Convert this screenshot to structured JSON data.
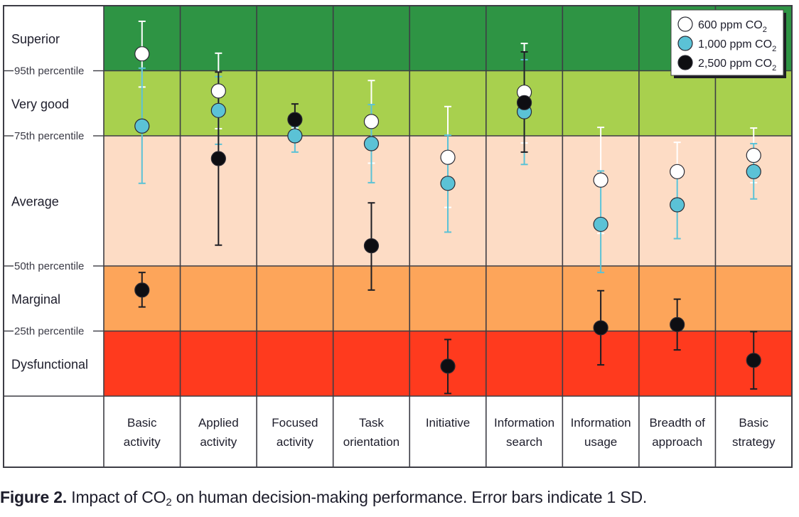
{
  "chart_data": {
    "type": "scatter",
    "title": "",
    "xlabel": "",
    "ylabel": "",
    "y_scale_note": "Score units where 0 = bottom, 1 = 25th percentile, 2 = 50th percentile, 4 = 75th percentile, 5 = 95th percentile, 6 = top",
    "ylim": [
      0,
      6
    ],
    "grid": true,
    "legend_position": "top-right",
    "bands": [
      {
        "label": "Superior",
        "from": 5,
        "to": 6,
        "color": "#2e9444"
      },
      {
        "label": "Very good",
        "from": 4,
        "to": 5,
        "color": "#a8d04e"
      },
      {
        "label": "Average",
        "from": 2,
        "to": 4,
        "color": "#fddcc5"
      },
      {
        "label": "Marginal",
        "from": 1,
        "to": 2,
        "color": "#fda55a"
      },
      {
        "label": "Dysfunctional",
        "from": 0,
        "to": 1,
        "color": "#ff3a1e"
      }
    ],
    "thresholds": [
      {
        "label": "95th percentile",
        "value": 5
      },
      {
        "label": "75th percentile",
        "value": 4
      },
      {
        "label": "50th percentile",
        "value": 2
      },
      {
        "label": "25th percentile",
        "value": 1
      }
    ],
    "categories": [
      [
        "Basic",
        "activity"
      ],
      [
        "Applied",
        "activity"
      ],
      [
        "Focused",
        "activity"
      ],
      [
        "Task",
        "orientation"
      ],
      [
        "Initiative"
      ],
      [
        "Information",
        "search"
      ],
      [
        "Information",
        "usage"
      ],
      [
        "Breadth of",
        "approach"
      ],
      [
        "Basic",
        "strategy"
      ]
    ],
    "series": [
      {
        "name": "600 ppm CO2",
        "name_main": "600 ppm CO",
        "name_sub": "2",
        "fill": "#ffffff",
        "error_color": "#ffffff",
        "values": [
          5.26,
          4.69,
          4.01,
          4.22,
          3.67,
          4.67,
          3.32,
          3.45,
          3.7
        ],
        "error_low": [
          4.75,
          4.11,
          3.9,
          3.58,
          2.9,
          3.89,
          2.5,
          3.01,
          3.28
        ],
        "error_high": [
          5.76,
          5.27,
          4.12,
          4.85,
          4.45,
          5.42,
          4.13,
          3.9,
          4.12
        ]
      },
      {
        "name": "1,000 ppm CO2",
        "name_main": "1,000 ppm CO",
        "name_sub": "2",
        "fill": "#5bc2d6",
        "error_color": "#5bc2d6",
        "values": [
          4.15,
          4.39,
          4.0,
          3.88,
          3.27,
          4.37,
          2.64,
          2.94,
          3.45
        ],
        "error_low": [
          3.27,
          3.87,
          3.75,
          3.28,
          2.52,
          3.56,
          1.9,
          2.42,
          3.03
        ],
        "error_high": [
          5.04,
          4.91,
          4.14,
          4.48,
          4.01,
          5.17,
          3.46,
          3.45,
          3.88
        ]
      },
      {
        "name": "2,500 ppm CO2",
        "name_main": "2,500 ppm CO",
        "name_sub": "2",
        "fill": "#0e0e12",
        "error_color": "#1e1e24",
        "values": [
          1.63,
          3.65,
          4.25,
          2.31,
          0.46,
          4.51,
          1.05,
          1.1,
          0.55
        ],
        "error_low": [
          1.37,
          2.32,
          4.01,
          1.63,
          0.04,
          3.75,
          0.48,
          0.71,
          0.11
        ],
        "error_high": [
          1.9,
          4.98,
          4.49,
          2.97,
          0.87,
          5.29,
          1.62,
          1.49,
          0.99
        ]
      }
    ]
  },
  "caption": {
    "bold": "Figure 2.",
    "text_before_sub": " Impact of CO",
    "sub": "2",
    "text_after_sub": " on human decision-making performance. Error bars indicate 1 SD."
  }
}
